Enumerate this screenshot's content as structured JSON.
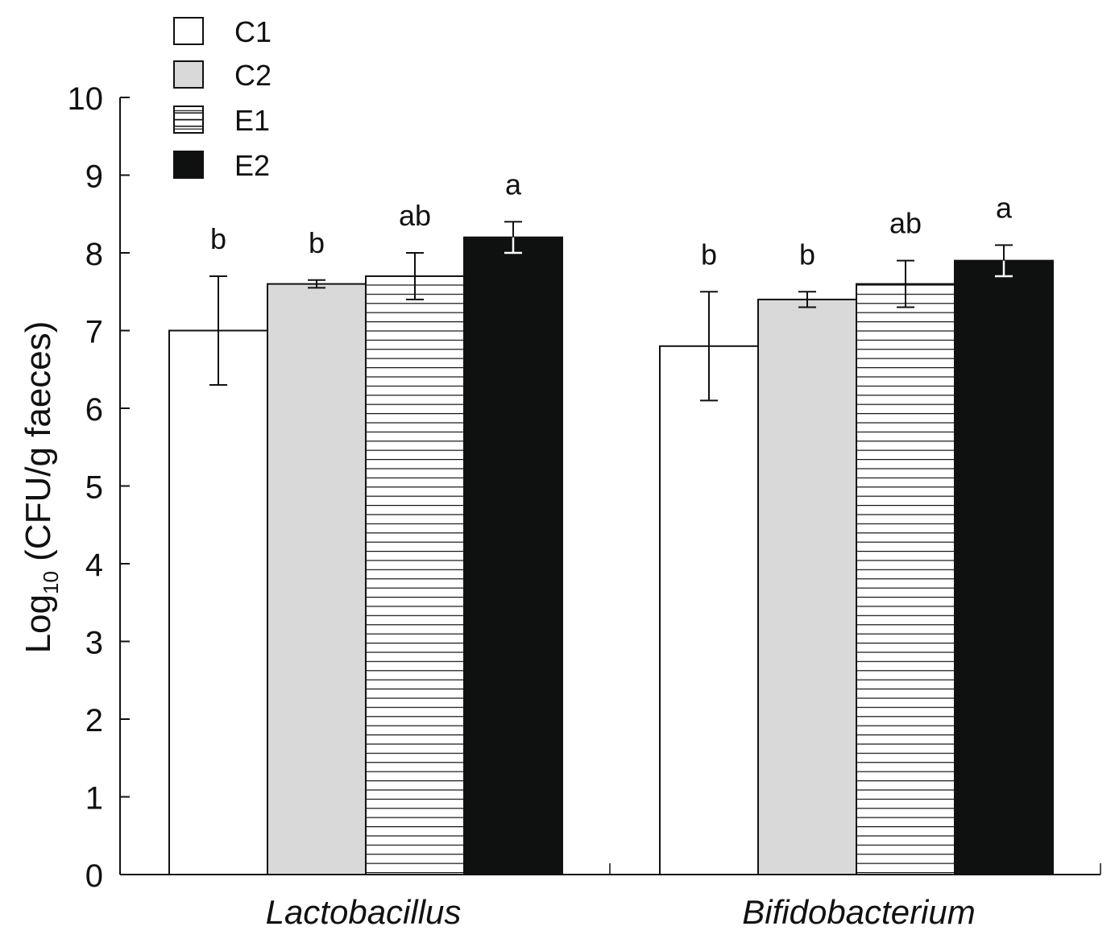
{
  "chart_data": {
    "type": "bar",
    "title": "",
    "xlabel": "",
    "ylabel": {
      "prefix": "Log",
      "subscript": "10",
      "suffix": " (CFU/g faeces)"
    },
    "ylim": [
      0,
      10
    ],
    "yticks": [
      "0",
      "1",
      "2",
      "3",
      "4",
      "5",
      "6",
      "7",
      "8",
      "9",
      "10"
    ],
    "categories": [
      "Lactobacillus",
      "Bifidobacterium"
    ],
    "series": [
      {
        "name": "C1",
        "fill": "#ffffff",
        "pattern": "none",
        "values": [
          7.0,
          6.8
        ],
        "errors": [
          0.7,
          0.7
        ],
        "labels": [
          "b",
          "b"
        ]
      },
      {
        "name": "C2",
        "fill": "#d9d9d9",
        "pattern": "none",
        "values": [
          7.6,
          7.4
        ],
        "errors": [
          0.05,
          0.1
        ],
        "labels": [
          "b",
          "b"
        ]
      },
      {
        "name": "E1",
        "fill": "#ffffff",
        "pattern": "horizontal-lines",
        "values": [
          7.7,
          7.6
        ],
        "errors": [
          0.3,
          0.3
        ],
        "labels": [
          "ab",
          "ab"
        ]
      },
      {
        "name": "E2",
        "fill": "#0f1110",
        "pattern": "none",
        "values": [
          8.2,
          7.9
        ],
        "errors": [
          0.2,
          0.2
        ],
        "labels": [
          "a",
          "a"
        ]
      }
    ],
    "legend": {
      "placement": "top-left",
      "entries": [
        "C1",
        "C2",
        "E1",
        "E2"
      ]
    }
  }
}
